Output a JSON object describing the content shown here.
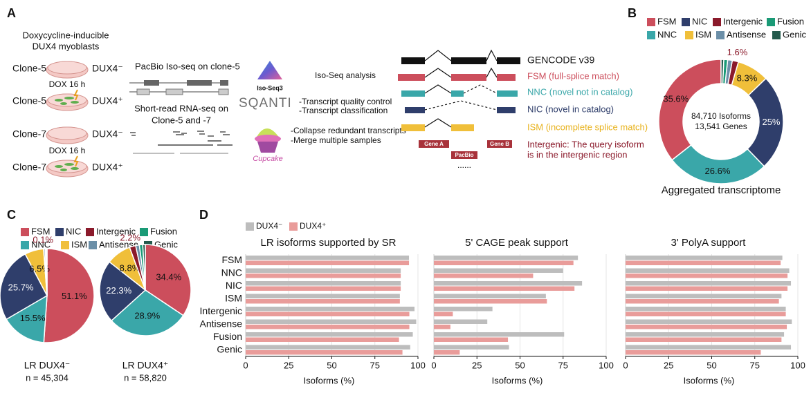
{
  "panel_a": {
    "label": "A",
    "title": [
      "Doxycycline-inducible",
      "DUX4 myoblasts"
    ],
    "samples": [
      {
        "clone": "Clone-5",
        "state": "DUX4⁻"
      },
      {
        "clone": "Clone-5",
        "state": "DUX4⁺"
      },
      {
        "clone": "Clone-7",
        "state": "DUX4⁻"
      },
      {
        "clone": "Clone-7",
        "state": "DUX4⁺"
      }
    ],
    "treatment": "DOX 16 h",
    "iso_seq": "PacBio Iso-seq on clone-5",
    "short_read": [
      "Short-read RNA-seq on",
      "Clone-5 and -7"
    ],
    "tools": {
      "isoseq3": "Iso-Seq3",
      "sqanti": "SQANTI",
      "cupcake": "Cupcake"
    },
    "steps": {
      "isoseq": "Iso-Seq analysis",
      "sqanti": [
        "-Transcript quality control",
        "-Transcript classification"
      ],
      "cupcake": [
        "-Collapse redundant transcripts",
        "-Merge multiple samples"
      ]
    },
    "structures": {
      "reference": "GENCODE v39",
      "fsm": "FSM (full-splice match)",
      "nnc": "NNC (novel not in catalog)",
      "nic": "NIC (novel in catalog)",
      "ism": "ISM (incomplete splice match)",
      "intergenic": [
        "Intergenic: The query isoform",
        "is in the intergenic region"
      ],
      "gene_a": "Gene A",
      "gene_b": "Gene B",
      "pacbio": "PacBio",
      "ellipsis": "......"
    }
  },
  "chart_data": [
    {
      "type": "donut",
      "label": "B",
      "categories": [
        "FSM",
        "NIC",
        "Intergenic",
        "Fusion",
        "NNC",
        "ISM",
        "Antisense",
        "Genic"
      ],
      "colors": [
        "#cc4e5c",
        "#2f3e6b",
        "#8b1a2b",
        "#1a9a76",
        "#3aa7a9",
        "#f0bf3a",
        "#6b8fa8",
        "#245a4c"
      ],
      "values": [
        35.6,
        25,
        1.6,
        1.0,
        26.6,
        8.3,
        1.2,
        0.7
      ],
      "value_labels": [
        "35.6%",
        "25%",
        "1.6%",
        null,
        "26.6%",
        "8.3%",
        null,
        null
      ],
      "center_text": [
        "84,710 Isoforms",
        "13,541 Genes"
      ],
      "subtitle": "Aggregated transcriptome"
    },
    {
      "type": "pie",
      "label": "C",
      "categories": [
        "FSM",
        "NIC",
        "Intergenic",
        "Fusion",
        "NNC",
        "ISM",
        "Antisense",
        "Genic"
      ],
      "colors": [
        "#cc4e5c",
        "#2f3e6b",
        "#8b1a2b",
        "#1a9a76",
        "#3aa7a9",
        "#f0bf3a",
        "#6b8fa8",
        "#245a4c"
      ],
      "series": [
        {
          "name": "LR DUX4⁻",
          "n_label": "n = 45,304",
          "values": [
            51.1,
            25.7,
            0.1,
            0.3,
            15.5,
            6.5,
            0.5,
            0.3
          ],
          "value_labels": [
            "51.1%",
            "25.7%",
            "0.1%",
            null,
            "15.5%",
            "6.5%",
            null,
            null
          ]
        },
        {
          "name": "LR DUX4⁺",
          "n_label": "n = 58,820",
          "values": [
            34.4,
            22.3,
            2.2,
            1.2,
            28.9,
            8.8,
            1.3,
            0.9
          ],
          "value_labels": [
            "34.4%",
            "22.3%",
            "2.2%",
            null,
            "28.9%",
            "8.8%",
            null,
            null
          ]
        }
      ]
    },
    {
      "type": "bar",
      "label": "D",
      "orientation": "horizontal",
      "categories": [
        "FSM",
        "NNC",
        "NIC",
        "ISM",
        "Intergenic",
        "Antisense",
        "Fusion",
        "Genic"
      ],
      "legend": [
        {
          "name": "DUX4⁻",
          "color": "#bdbdbd"
        },
        {
          "name": "DUX4⁺",
          "color": "#e99c9a"
        }
      ],
      "xlim": [
        0,
        100
      ],
      "xticks": [
        0,
        25,
        50,
        75,
        100
      ],
      "xlabel": "Isoforms (%)",
      "grid": true,
      "subplots": [
        {
          "title": "LR isoforms supported by SR",
          "series": [
            {
              "values": [
                94.8,
                90,
                90,
                89.5,
                98,
                99,
                97,
                95.5
              ]
            },
            {
              "values": [
                94.8,
                90,
                90,
                89.5,
                95,
                95,
                89,
                91
              ]
            }
          ]
        },
        {
          "title": "5' CAGE peak support",
          "series": [
            {
              "values": [
                83.6,
                75,
                86,
                65,
                34,
                31,
                75.6,
                43.6
              ]
            },
            {
              "values": [
                81,
                57.6,
                81.6,
                65.6,
                11,
                9.6,
                43,
                15
              ]
            }
          ]
        },
        {
          "title": "3' PolyA support",
          "series": [
            {
              "values": [
                91,
                95,
                96,
                90.5,
                93,
                96.5,
                92,
                96
              ]
            },
            {
              "values": [
                90,
                94,
                94,
                89,
                93,
                93.6,
                90.5,
                78.5
              ]
            }
          ]
        }
      ]
    }
  ]
}
